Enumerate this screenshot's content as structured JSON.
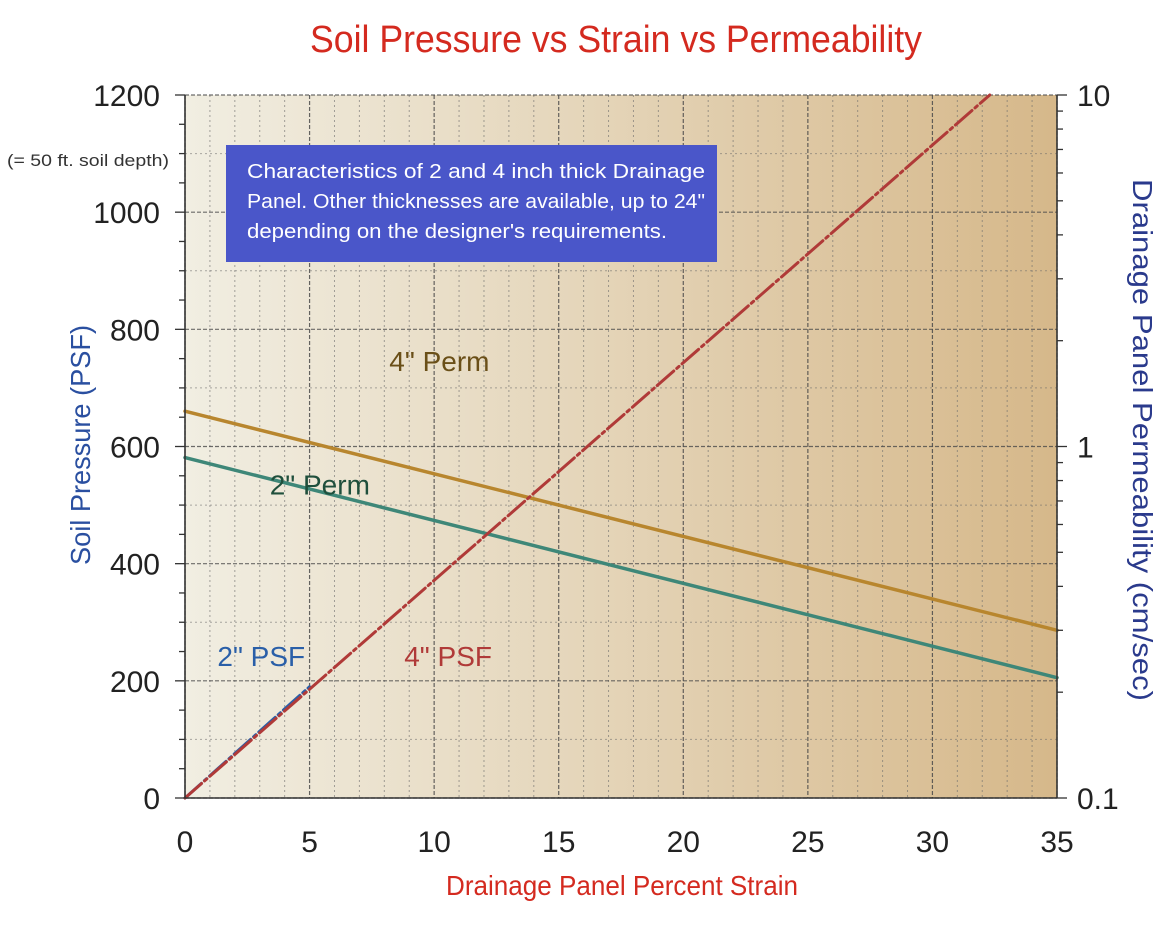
{
  "chart_data": {
    "type": "line",
    "title": "Soil Pressure vs Strain vs Permeability",
    "xlabel": "Drainage Panel Percent Strain",
    "ylabel_left": "Soil Pressure (PSF)",
    "ylabel_left_note": "(= 50 ft. soil depth)",
    "ylabel_right": "Drainage Panel Permeability (cm/sec)",
    "xlim": [
      0,
      35
    ],
    "ylim_left": [
      0,
      1200
    ],
    "ylim_right": [
      0.1,
      10
    ],
    "right_axis_scale": "log",
    "grid": true,
    "x_ticks": [
      {
        "value": 0,
        "label": "0"
      },
      {
        "value": 5,
        "label": "5"
      },
      {
        "value": 10,
        "label": "10"
      },
      {
        "value": 15,
        "label": "15"
      },
      {
        "value": 20,
        "label": "20"
      },
      {
        "value": 25,
        "label": "25"
      },
      {
        "value": 30,
        "label": "30"
      },
      {
        "value": 35,
        "label": "35"
      }
    ],
    "y_left_ticks": [
      {
        "value": 0,
        "label": "0"
      },
      {
        "value": 200,
        "label": "200"
      },
      {
        "value": 400,
        "label": "400"
      },
      {
        "value": 600,
        "label": "600"
      },
      {
        "value": 800,
        "label": "800"
      },
      {
        "value": 1000,
        "label": "1000"
      },
      {
        "value": 1200,
        "label": "1200"
      }
    ],
    "y_right_ticks": [
      {
        "value": 0.1,
        "label": "0.1"
      },
      {
        "value": 1,
        "label": "1"
      },
      {
        "value": 10,
        "label": "10"
      }
    ],
    "annotation": "Characteristics of 2 and 4 inch thick Drainage Panel. Other thicknesses are available, up to 24\" depending on the designer's requirements.",
    "series": [
      {
        "name": "4\" Perm",
        "axis": "right",
        "color": "#b8862e",
        "style": "solid",
        "x": [
          0,
          35
        ],
        "y": [
          1.26,
          0.3
        ],
        "label_at": {
          "x": 8.2,
          "y": 1.64
        }
      },
      {
        "name": "2\" Perm",
        "axis": "right",
        "color": "#3e8778",
        "style": "solid",
        "x": [
          0,
          35
        ],
        "y": [
          0.93,
          0.22
        ],
        "label_at": {
          "x": 3.4,
          "y": 0.73
        }
      },
      {
        "name": "2\" PSF",
        "axis": "left",
        "color": "#2a5fa8",
        "style": "dashed",
        "x": [
          0,
          5
        ],
        "y": [
          0,
          190
        ],
        "label_at": {
          "x": 1.3,
          "y": 225
        }
      },
      {
        "name": "4\" PSF",
        "axis": "left",
        "color": "#b03a38",
        "style": "dashed",
        "x": [
          0,
          32.3
        ],
        "y": [
          0,
          1200
        ],
        "label_at": {
          "x": 8.8,
          "y": 225
        }
      }
    ],
    "colors": {
      "title": "#d42a1f",
      "xlabel": "#d42a1f",
      "ylabel_left": "#2a4fa0",
      "ylabel_right": "#2a3a8c",
      "annotation_box": "#4a56c9",
      "annotation_text": "#ffffff",
      "plot_bg_left": "#f1eee2",
      "plot_bg_right": "#d6b88a",
      "grid_major": "#4a4a4a",
      "grid_minor": "#6a6a6a"
    }
  }
}
